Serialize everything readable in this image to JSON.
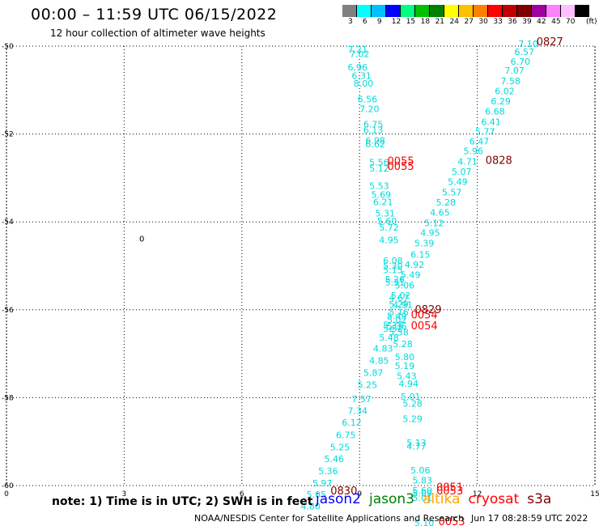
{
  "header": {
    "title": "00:00 – 11:59 UTC 06/15/2022",
    "subtitle": "12 hour collection of altimeter wave heights"
  },
  "color_scale": {
    "labels": [
      "3",
      "6",
      "9",
      "12",
      "15",
      "18",
      "21",
      "24",
      "27",
      "30",
      "33",
      "36",
      "39",
      "42",
      "45",
      "70",
      "(ft)"
    ],
    "colors": [
      "#808080",
      "#00ffff",
      "#00c0ff",
      "#0000ff",
      "#00ff80",
      "#00c000",
      "#008000",
      "#ffff00",
      "#ffc000",
      "#ff8000",
      "#ff0000",
      "#c00000",
      "#800000",
      "#a000a0",
      "#ff80ff",
      "#ffc0ff",
      "#000000"
    ]
  },
  "footer": {
    "note": "note: 1) Time is in UTC; 2) SWH is in feet",
    "credit": "NOAA/NESDIS Center for Satellite Applications and Research",
    "stamp": "Jun 17 08:28:59 UTC 2022"
  },
  "legend": [
    {
      "name": "jason2",
      "color": "#0000ff"
    },
    {
      "name": "jason3",
      "color": "#008000"
    },
    {
      "name": "altika",
      "color": "#ffa500"
    },
    {
      "name": "cryosat",
      "color": "#ff0000"
    },
    {
      "name": "s3a",
      "color": "#800000"
    }
  ],
  "chart_data": {
    "type": "scatter",
    "xlim": [
      0,
      15
    ],
    "ylim": [
      -60,
      -50
    ],
    "x_ticks": [
      "0",
      "3",
      "6",
      "9",
      "12",
      "15"
    ],
    "y_ticks": [
      "-50",
      "-52",
      "-54",
      "-56",
      "-58",
      "-60"
    ],
    "grid": true,
    "contour_label": {
      "text": "0",
      "x": 3.45,
      "y": -54.45
    },
    "wave_heights": [
      {
        "x": 8.95,
        "y": -50.15,
        "label": "7.21"
      },
      {
        "x": 9.0,
        "y": -50.25,
        "label": "7.02"
      },
      {
        "x": 8.95,
        "y": -50.55,
        "label": "6.96"
      },
      {
        "x": 9.05,
        "y": -50.75,
        "label": "6.31"
      },
      {
        "x": 9.1,
        "y": -50.92,
        "label": "8.00"
      },
      {
        "x": 9.2,
        "y": -51.28,
        "label": "6.56"
      },
      {
        "x": 9.25,
        "y": -51.5,
        "label": "7.20"
      },
      {
        "x": 9.35,
        "y": -51.85,
        "label": "6.75"
      },
      {
        "x": 9.35,
        "y": -51.98,
        "label": "6.13"
      },
      {
        "x": 9.4,
        "y": -52.22,
        "label": "6.98"
      },
      {
        "x": 9.4,
        "y": -52.3,
        "label": "6.62"
      },
      {
        "x": 9.5,
        "y": -52.72,
        "label": "5.56"
      },
      {
        "x": 9.5,
        "y": -52.85,
        "label": "5.12"
      },
      {
        "x": 9.5,
        "y": -53.25,
        "label": "5.53"
      },
      {
        "x": 9.55,
        "y": -53.45,
        "label": "5.69"
      },
      {
        "x": 9.6,
        "y": -53.62,
        "label": "6.21"
      },
      {
        "x": 9.65,
        "y": -53.88,
        "label": "5.31"
      },
      {
        "x": 9.7,
        "y": -54.05,
        "label": "5.60"
      },
      {
        "x": 9.75,
        "y": -54.2,
        "label": "5.72"
      },
      {
        "x": 9.75,
        "y": -54.48,
        "label": "4.95"
      },
      {
        "x": 9.85,
        "y": -54.95,
        "label": "6.08"
      },
      {
        "x": 9.85,
        "y": -55.07,
        "label": "5.30"
      },
      {
        "x": 9.85,
        "y": -55.17,
        "label": "5.15"
      },
      {
        "x": 9.9,
        "y": -55.38,
        "label": "5.26"
      },
      {
        "x": 9.9,
        "y": -55.45,
        "label": "5.31"
      },
      {
        "x": 10.0,
        "y": -55.8,
        "label": "4.67"
      },
      {
        "x": 10.0,
        "y": -55.95,
        "label": "5.29"
      },
      {
        "x": 9.95,
        "y": -56.22,
        "label": "5.49"
      },
      {
        "x": 9.95,
        "y": -56.3,
        "label": "5.02"
      },
      {
        "x": 9.85,
        "y": -56.42,
        "label": "5.37"
      },
      {
        "x": 9.85,
        "y": -56.5,
        "label": "5.52"
      },
      {
        "x": 9.75,
        "y": -56.7,
        "label": "5.48"
      },
      {
        "x": 9.6,
        "y": -56.95,
        "label": "4.83"
      },
      {
        "x": 9.5,
        "y": -57.23,
        "label": "4.85"
      },
      {
        "x": 9.35,
        "y": -57.5,
        "label": "5.87"
      },
      {
        "x": 9.2,
        "y": -57.78,
        "label": "5.25"
      },
      {
        "x": 9.05,
        "y": -58.1,
        "label": "7.57"
      },
      {
        "x": 8.95,
        "y": -58.37,
        "label": "7.34"
      },
      {
        "x": 8.8,
        "y": -58.64,
        "label": "6.12"
      },
      {
        "x": 8.65,
        "y": -58.92,
        "label": "6.75"
      },
      {
        "x": 8.5,
        "y": -59.2,
        "label": "5.25"
      },
      {
        "x": 8.35,
        "y": -59.47,
        "label": "5.46"
      },
      {
        "x": 8.2,
        "y": -59.74,
        "label": "5.36"
      },
      {
        "x": 8.05,
        "y": -60.02,
        "label": "5.97"
      },
      {
        "x": 7.9,
        "y": -60.28,
        "label": "5.05"
      },
      {
        "x": 7.75,
        "y": -60.54,
        "label": "4.80"
      },
      {
        "x": 13.3,
        "y": -50.02,
        "label": "7.10"
      },
      {
        "x": 13.2,
        "y": -50.2,
        "label": "6.57"
      },
      {
        "x": 13.1,
        "y": -50.42,
        "label": "6.70"
      },
      {
        "x": 12.95,
        "y": -50.63,
        "label": "7.07"
      },
      {
        "x": 12.85,
        "y": -50.87,
        "label": "7.58"
      },
      {
        "x": 12.7,
        "y": -51.1,
        "label": "6.02"
      },
      {
        "x": 12.6,
        "y": -51.33,
        "label": "6.29"
      },
      {
        "x": 12.45,
        "y": -51.56,
        "label": "6.68"
      },
      {
        "x": 12.35,
        "y": -51.8,
        "label": "6.41"
      },
      {
        "x": 12.2,
        "y": -52.02,
        "label": "5.77"
      },
      {
        "x": 12.05,
        "y": -52.24,
        "label": "6.47"
      },
      {
        "x": 11.9,
        "y": -52.46,
        "label": "5.96"
      },
      {
        "x": 11.75,
        "y": -52.7,
        "label": "4.71"
      },
      {
        "x": 11.6,
        "y": -52.93,
        "label": "5.07"
      },
      {
        "x": 11.5,
        "y": -53.16,
        "label": "5.49"
      },
      {
        "x": 11.35,
        "y": -53.4,
        "label": "5.57"
      },
      {
        "x": 11.2,
        "y": -53.63,
        "label": "5.28"
      },
      {
        "x": 11.05,
        "y": -53.86,
        "label": "4.65"
      },
      {
        "x": 10.9,
        "y": -54.1,
        "label": "5.12"
      },
      {
        "x": 10.8,
        "y": -54.32,
        "label": "4.95"
      },
      {
        "x": 10.65,
        "y": -54.56,
        "label": "5.39"
      },
      {
        "x": 10.55,
        "y": -54.82,
        "label": "6.15"
      },
      {
        "x": 10.4,
        "y": -55.05,
        "label": "4.92"
      },
      {
        "x": 10.3,
        "y": -55.28,
        "label": "5.49"
      },
      {
        "x": 10.15,
        "y": -55.52,
        "label": "5.06"
      },
      {
        "x": 10.05,
        "y": -55.75,
        "label": "5.02"
      },
      {
        "x": 10.1,
        "y": -55.96,
        "label": "4.91"
      },
      {
        "x": 10.0,
        "y": -56.12,
        "label": "5.16"
      },
      {
        "x": 9.95,
        "y": -56.45,
        "label": "5.36"
      },
      {
        "x": 10.0,
        "y": -56.58,
        "label": "5.38"
      },
      {
        "x": 10.1,
        "y": -56.85,
        "label": "5.28"
      },
      {
        "x": 10.15,
        "y": -57.15,
        "label": "5.80"
      },
      {
        "x": 10.15,
        "y": -57.35,
        "label": "5.19"
      },
      {
        "x": 10.2,
        "y": -57.58,
        "label": "5.43"
      },
      {
        "x": 10.25,
        "y": -57.75,
        "label": "4.94"
      },
      {
        "x": 10.3,
        "y": -58.05,
        "label": "5.01"
      },
      {
        "x": 10.35,
        "y": -58.2,
        "label": "5.28"
      },
      {
        "x": 10.35,
        "y": -58.55,
        "label": "5.29"
      },
      {
        "x": 10.45,
        "y": -59.1,
        "label": "5.13"
      },
      {
        "x": 10.45,
        "y": -59.18,
        "label": "4.77"
      },
      {
        "x": 10.55,
        "y": -59.72,
        "label": "5.06"
      },
      {
        "x": 10.6,
        "y": -59.95,
        "label": "5.83"
      },
      {
        "x": 10.6,
        "y": -60.18,
        "label": "5.60"
      },
      {
        "x": 10.6,
        "y": -60.25,
        "label": "5.09"
      },
      {
        "x": 10.6,
        "y": -60.35,
        "label": "5.01"
      },
      {
        "x": 10.65,
        "y": -60.92,
        "label": "5.10"
      }
    ],
    "pass_times": [
      {
        "x": 13.85,
        "y": -49.98,
        "label": "0827",
        "color": "#800000"
      },
      {
        "x": 12.55,
        "y": -52.68,
        "label": "0828",
        "color": "#800000"
      },
      {
        "x": 10.05,
        "y": -52.7,
        "label": "0055",
        "color": "#ff0000"
      },
      {
        "x": 10.05,
        "y": -52.82,
        "label": "0055",
        "color": "#ff0000"
      },
      {
        "x": 10.75,
        "y": -56.08,
        "label": "0829",
        "color": "#800000"
      },
      {
        "x": 10.65,
        "y": -56.2,
        "label": "0054",
        "color": "#ff0000"
      },
      {
        "x": 10.65,
        "y": -56.45,
        "label": "0054",
        "color": "#ff0000"
      },
      {
        "x": 8.6,
        "y": -60.2,
        "label": "0830",
        "color": "#800000"
      },
      {
        "x": 11.3,
        "y": -60.12,
        "label": "0051",
        "color": "#ff0000"
      },
      {
        "x": 11.3,
        "y": -60.2,
        "label": "0053",
        "color": "#ff0000"
      },
      {
        "x": 11.35,
        "y": -60.9,
        "label": "0053",
        "color": "#ff0000"
      }
    ]
  }
}
